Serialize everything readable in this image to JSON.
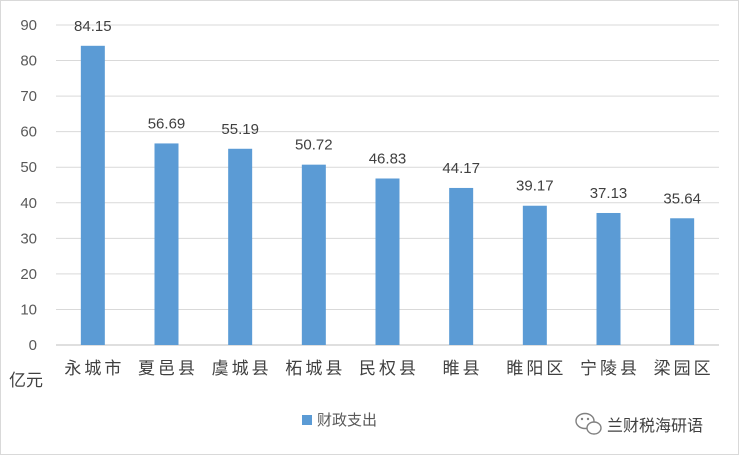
{
  "chart_data": {
    "type": "bar",
    "categories": [
      "永城市",
      "夏邑县",
      "虞城县",
      "柘城县",
      "民权县",
      "睢县",
      "睢阳区",
      "宁陵县",
      "梁园区"
    ],
    "series": [
      {
        "name": "财政支出",
        "values": [
          84.15,
          56.69,
          55.19,
          50.72,
          46.83,
          44.17,
          39.17,
          37.13,
          35.64
        ],
        "color": "#5b9bd5"
      }
    ],
    "data_labels": [
      "84.15",
      "56.69",
      "55.19",
      "50.72",
      "46.83",
      "44.17",
      "39.17",
      "37.13",
      "35.64"
    ],
    "ylim": [
      0,
      90
    ],
    "yticks": [
      0,
      10,
      20,
      30,
      40,
      50,
      60,
      70,
      80,
      90
    ],
    "ylabel": "亿元",
    "grid": true,
    "legend": "bottom-center"
  },
  "watermark": {
    "icon": "wechat-icon",
    "text": "兰财税海研语"
  }
}
